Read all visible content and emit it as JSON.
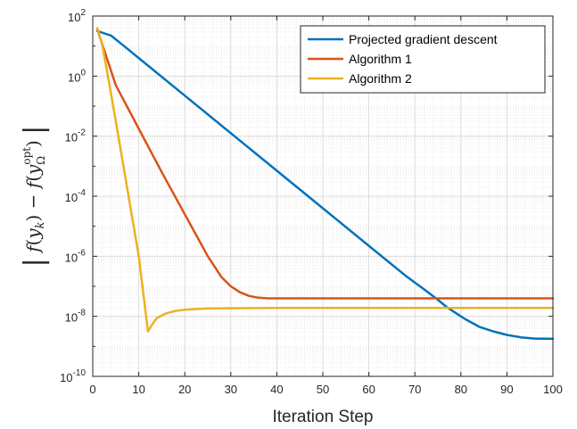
{
  "chart_data": {
    "type": "line",
    "title": "",
    "xlabel": "Iteration Step",
    "ylabel": "|f(y_k) − f(y_Ω^opt)|",
    "xlim": [
      0,
      100
    ],
    "ylim_log10": [
      -10,
      2
    ],
    "yscale": "log",
    "grid": true,
    "minor_grid": true,
    "legend_position": "top-right",
    "x_ticks": [
      "0",
      "10",
      "20",
      "30",
      "40",
      "50",
      "60",
      "70",
      "80",
      "90",
      "100"
    ],
    "y_ticks": [
      {
        "base": "10",
        "exp": "-10"
      },
      {
        "base": "10",
        "exp": "-8"
      },
      {
        "base": "10",
        "exp": "-6"
      },
      {
        "base": "10",
        "exp": "-4"
      },
      {
        "base": "10",
        "exp": "-2"
      },
      {
        "base": "10",
        "exp": "0"
      },
      {
        "base": "10",
        "exp": "2"
      }
    ],
    "series": [
      {
        "name": "Projected gradient descent",
        "color": "#0072BD",
        "x": [
          1,
          2,
          4,
          6,
          8,
          10,
          20,
          30,
          40,
          50,
          60,
          68,
          72,
          75,
          77,
          79,
          81,
          84,
          87,
          90,
          93,
          96,
          100
        ],
        "log10y": [
          1.5,
          1.45,
          1.35,
          1.1,
          0.85,
          0.6,
          -0.65,
          -1.9,
          -3.15,
          -4.4,
          -5.65,
          -6.65,
          -7.1,
          -7.45,
          -7.7,
          -7.9,
          -8.1,
          -8.35,
          -8.5,
          -8.62,
          -8.7,
          -8.74,
          -8.75
        ]
      },
      {
        "name": "Algorithm 1",
        "color": "#D95319",
        "x": [
          1,
          5,
          10,
          15,
          20,
          25,
          28,
          30,
          32,
          34,
          36,
          38,
          40,
          50,
          60,
          70,
          80,
          90,
          100
        ],
        "log10y": [
          1.55,
          -0.3,
          -1.75,
          -3.2,
          -4.6,
          -6.0,
          -6.7,
          -7.0,
          -7.2,
          -7.32,
          -7.38,
          -7.4,
          -7.4,
          -7.4,
          -7.4,
          -7.4,
          -7.4,
          -7.4,
          -7.4
        ]
      },
      {
        "name": "Algorithm 2",
        "color": "#EDB120",
        "x": [
          1,
          2,
          4,
          6,
          8,
          10,
          12,
          13,
          14,
          16,
          18,
          20,
          22,
          25,
          30,
          40,
          60,
          80,
          100
        ],
        "log10y": [
          1.6,
          1.1,
          -0.6,
          -2.4,
          -4.2,
          -6.0,
          -8.5,
          -8.25,
          -8.05,
          -7.9,
          -7.82,
          -7.78,
          -7.76,
          -7.74,
          -7.73,
          -7.72,
          -7.72,
          -7.72,
          -7.72
        ]
      }
    ]
  }
}
